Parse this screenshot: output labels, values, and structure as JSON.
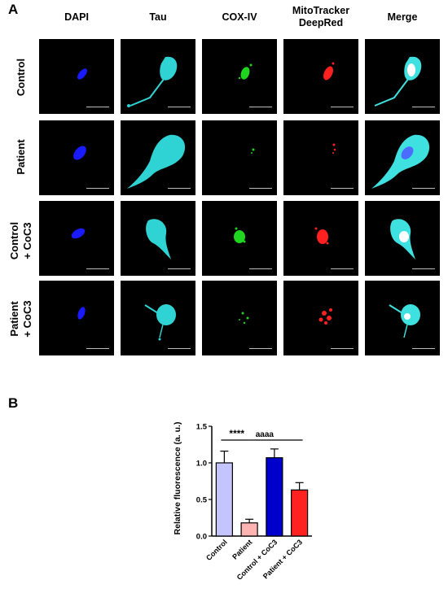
{
  "panel_a": {
    "letter": "A",
    "columns": [
      "DAPI",
      "Tau",
      "COX-IV",
      "MitoTracker DeepRed",
      "Merge"
    ],
    "column_lines": [
      [
        "DAPI"
      ],
      [
        "Tau"
      ],
      [
        "COX-IV"
      ],
      [
        "MitoTracker",
        "DeepRed"
      ],
      [
        "Merge"
      ]
    ],
    "rows": [
      "Control",
      "Patient",
      "Control + CoC3",
      "Patient + CoC3"
    ],
    "row_lines": [
      [
        "Control"
      ],
      [
        "Patient"
      ],
      [
        "Control",
        "+ CoC3"
      ],
      [
        "Patient",
        "+ CoC3"
      ]
    ],
    "channel_colors": {
      "dapi": "#1a1aff",
      "tau": "#2fd3d3",
      "cox": "#1fd51f",
      "mito": "#ff2020",
      "merge_tau": "#3fe0e0"
    }
  },
  "panel_b": {
    "letter": "B"
  },
  "chart_data": {
    "type": "bar",
    "categories": [
      "Control",
      "Patient",
      "Control + CoC3",
      "Patient + CoC3"
    ],
    "values": [
      1.0,
      0.18,
      1.07,
      0.63
    ],
    "errors": [
      0.16,
      0.05,
      0.12,
      0.1
    ],
    "colors": [
      "#c4c4ff",
      "#ffb3b3",
      "#0000cc",
      "#ff2020"
    ],
    "xlabel": "",
    "ylabel": "Relative fluorescence (a. u.)",
    "ylim": [
      0.0,
      1.5
    ],
    "yticks": [
      "0.0",
      "0.5",
      "1.0",
      "1.5"
    ],
    "annotations": [
      {
        "text": "****",
        "from": "Control",
        "to": "Patient"
      },
      {
        "text": "aaaa",
        "from": "Patient",
        "to": "Patient + CoC3"
      }
    ],
    "grid": false,
    "legend": "none"
  }
}
